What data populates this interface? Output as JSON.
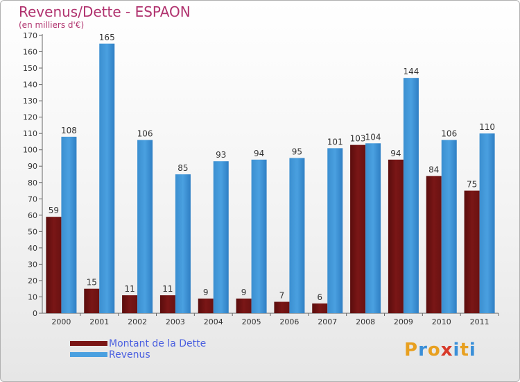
{
  "title": "Revenus/Dette - ESPAON",
  "subtitle": "(en milliers d'€)",
  "colors": {
    "dette": "#7a1616",
    "revenus": "#4aa0e0",
    "title": "#b0326e",
    "legend_text": "#4a5fe0"
  },
  "logo": {
    "text": "Proxiti",
    "colors": [
      "#e8a020",
      "#3a8fd8",
      "#e8a020",
      "#d83a2a",
      "#3a8fd8",
      "#e8a020",
      "#3a8fd8"
    ]
  },
  "chart_data": {
    "type": "bar",
    "categories": [
      "2000",
      "2001",
      "2002",
      "2003",
      "2004",
      "2005",
      "2006",
      "2007",
      "2008",
      "2009",
      "2010",
      "2011"
    ],
    "series": [
      {
        "name": "Montant de la Dette",
        "values": [
          59,
          15,
          11,
          11,
          9,
          9,
          7,
          6,
          103,
          94,
          84,
          75
        ]
      },
      {
        "name": "Revenus",
        "values": [
          108,
          165,
          106,
          85,
          93,
          94,
          95,
          101,
          104,
          144,
          106,
          110
        ]
      }
    ],
    "ylim": [
      0,
      170
    ],
    "yticks": [
      0,
      10,
      20,
      30,
      40,
      50,
      60,
      70,
      80,
      90,
      100,
      110,
      120,
      130,
      140,
      150,
      160,
      170
    ],
    "grid": false,
    "legend_position": "bottom-left"
  }
}
